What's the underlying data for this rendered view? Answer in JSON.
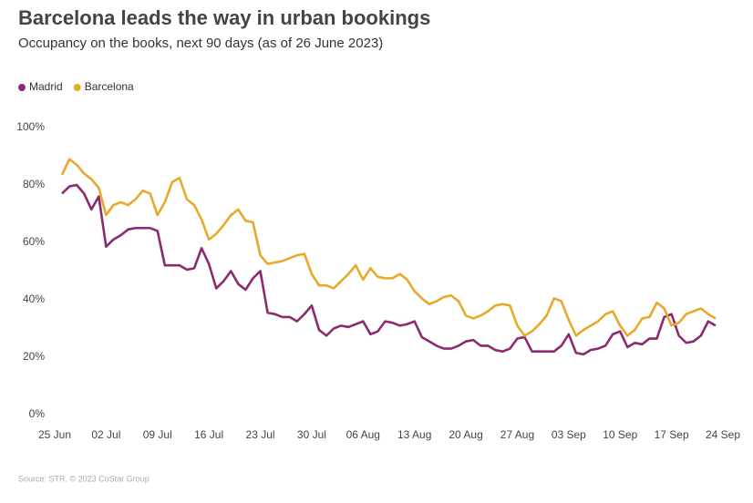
{
  "chart_data": {
    "type": "line",
    "title": "Barcelona leads the way in urban bookings",
    "subtitle": "Occupancy on the books, next 90 days (as of 26 June 2023)",
    "source": "Source: STR. © 2023 CoStar Group",
    "legend": "top-left",
    "grid": false,
    "xlim": [
      0,
      91
    ],
    "xticks": [
      {
        "value": 0,
        "label": "25 Jun"
      },
      {
        "value": 7,
        "label": "02 Jul"
      },
      {
        "value": 14,
        "label": "09 Jul"
      },
      {
        "value": 21,
        "label": "16 Jul"
      },
      {
        "value": 28,
        "label": "23 Jul"
      },
      {
        "value": 35,
        "label": "30 Jul"
      },
      {
        "value": 42,
        "label": "06 Aug"
      },
      {
        "value": 49,
        "label": "13 Aug"
      },
      {
        "value": 56,
        "label": "20 Aug"
      },
      {
        "value": 63,
        "label": "27 Aug"
      },
      {
        "value": 70,
        "label": "03 Sep"
      },
      {
        "value": 77,
        "label": "10 Sep"
      },
      {
        "value": 84,
        "label": "17 Sep"
      },
      {
        "value": 91,
        "label": "24 Sep"
      }
    ],
    "ylim": [
      0,
      100
    ],
    "yticks": [
      {
        "value": 0,
        "label": "0%"
      },
      {
        "value": 20,
        "label": "20%"
      },
      {
        "value": 40,
        "label": "40%"
      },
      {
        "value": 60,
        "label": "60%"
      },
      {
        "value": 80,
        "label": "80%"
      },
      {
        "value": 100,
        "label": "100%"
      }
    ],
    "x": [
      1,
      2,
      3,
      4,
      5,
      6,
      7,
      8,
      9,
      10,
      11,
      12,
      13,
      14,
      15,
      16,
      17,
      18,
      19,
      20,
      21,
      22,
      23,
      24,
      25,
      26,
      27,
      28,
      29,
      30,
      31,
      32,
      33,
      34,
      35,
      36,
      37,
      38,
      39,
      40,
      41,
      42,
      43,
      44,
      45,
      46,
      47,
      48,
      49,
      50,
      51,
      52,
      53,
      54,
      55,
      56,
      57,
      58,
      59,
      60,
      61,
      62,
      63,
      64,
      65,
      66,
      67,
      68,
      69,
      70,
      71,
      72,
      73,
      74,
      75,
      76,
      77,
      78,
      79,
      80,
      81,
      82,
      83,
      84,
      85,
      86,
      87,
      88,
      89,
      90
    ],
    "series": [
      {
        "name": "Madrid",
        "color": "#8b2a6e",
        "values": [
          77,
          79.5,
          80,
          77,
          71.5,
          76,
          58.5,
          61,
          62.5,
          64.5,
          65,
          65,
          65,
          64,
          52,
          52,
          52,
          50.5,
          51,
          58,
          52.5,
          44,
          46.5,
          50,
          45.5,
          43.5,
          47.5,
          50,
          35.5,
          35,
          34,
          34,
          32.5,
          35,
          38,
          29.5,
          27.5,
          30,
          31,
          30.5,
          31.5,
          32.5,
          28,
          29,
          32.5,
          32,
          31,
          31.5,
          32.5,
          27,
          25.5,
          24,
          23,
          23,
          24,
          25.5,
          26,
          24,
          24,
          22.5,
          22,
          23,
          26.5,
          27,
          22,
          22,
          22,
          22,
          24,
          28,
          21.5,
          21,
          22.5,
          23,
          24,
          28,
          29,
          23.5,
          25,
          24.5,
          26.5,
          26.5,
          34,
          35,
          27.5,
          25,
          25.5,
          27.5,
          32.5,
          31
        ]
      },
      {
        "name": "Barcelona",
        "color": "#e8a92a",
        "values": [
          83.5,
          89,
          87,
          84,
          82,
          79,
          69.5,
          73,
          74,
          73,
          75,
          78,
          77,
          69.5,
          74,
          81,
          82.5,
          75,
          73,
          68,
          61,
          63,
          66,
          69.5,
          71.5,
          67.5,
          67,
          55.5,
          52.5,
          53,
          53.5,
          54.5,
          55.5,
          56,
          49,
          45,
          45,
          44,
          46.5,
          49,
          52,
          47,
          51,
          48,
          47.5,
          47.5,
          49,
          47,
          43,
          40.5,
          38.5,
          39.5,
          41,
          41.5,
          39.5,
          34.5,
          33.5,
          34.5,
          36,
          38,
          38.5,
          38,
          31,
          27.5,
          29,
          31.5,
          34.5,
          40.5,
          39.5,
          33,
          27.5,
          29.5,
          31,
          32.5,
          35,
          36,
          31,
          27.5,
          29.5,
          33.5,
          34,
          39,
          37,
          31,
          32,
          35,
          36,
          37,
          35,
          33.5
        ]
      }
    ]
  }
}
